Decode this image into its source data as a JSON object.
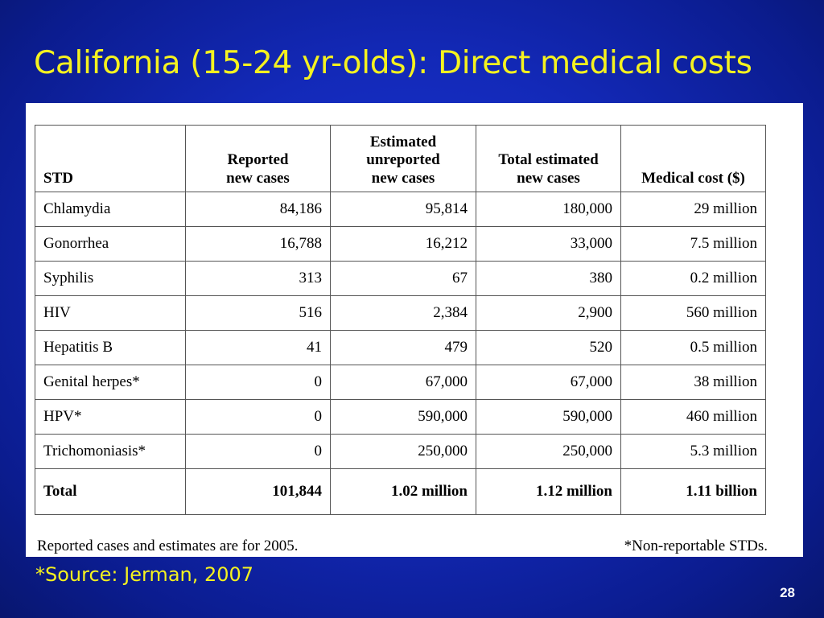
{
  "slide": {
    "title": "California (15-24 yr-olds): Direct medical costs",
    "source": "*Source: Jerman, 2007",
    "page_number": "28",
    "colors": {
      "background": "#1329b8",
      "title": "#f5f21f",
      "panel": "#ffffff"
    }
  },
  "table": {
    "headers": [
      [
        "STD"
      ],
      [
        "Reported",
        "new cases"
      ],
      [
        "Estimated",
        "unreported",
        "new cases"
      ],
      [
        "Total estimated",
        "new cases"
      ],
      [
        "Medical cost ($)"
      ]
    ],
    "rows": [
      [
        "Chlamydia",
        "84,186",
        "95,814",
        "180,000",
        "29 million"
      ],
      [
        "Gonorrhea",
        "16,788",
        "16,212",
        "33,000",
        "7.5 million"
      ],
      [
        "Syphilis",
        "313",
        "67",
        "380",
        "0.2 million"
      ],
      [
        "HIV",
        "516",
        "2,384",
        "2,900",
        "560 million"
      ],
      [
        "Hepatitis B",
        "41",
        "479",
        "520",
        "0.5 million"
      ],
      [
        "Genital herpes*",
        "0",
        "67,000",
        "67,000",
        "38 million"
      ],
      [
        "HPV*",
        "0",
        "590,000",
        "590,000",
        "460 million"
      ],
      [
        "Trichomoniasis*",
        "0",
        "250,000",
        "250,000",
        "5.3 million"
      ]
    ],
    "total": [
      "Total",
      "101,844",
      "1.02 million",
      "1.12 million",
      "1.11 billion"
    ]
  },
  "notes": {
    "left": "Reported cases and estimates are for 2005.",
    "right": "*Non-reportable STDs."
  }
}
